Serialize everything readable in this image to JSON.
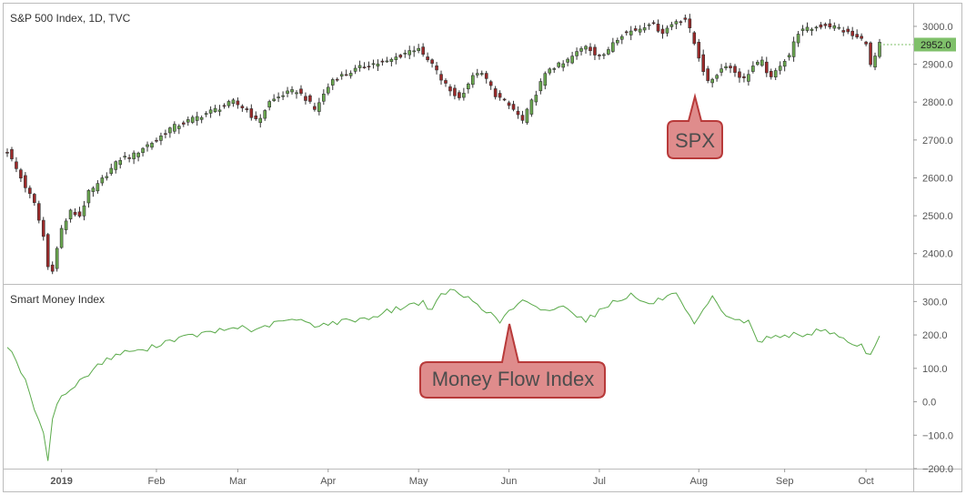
{
  "chart_data": [
    {
      "type": "candlestick",
      "title": "S&P 500 Index, 1D, TVC",
      "ylim": [
        2320,
        3060
      ],
      "y_ticks": [
        "3000.0",
        "2900.0",
        "2800.0",
        "2700.0",
        "2600.0",
        "2500.0",
        "2400.0"
      ],
      "y_tick_values": [
        3000,
        2900,
        2800,
        2700,
        2600,
        2500,
        2400
      ],
      "last_price": "2952.0",
      "last_price_value": 2952,
      "up_color": "#6aa84f",
      "down_color": "#9c2a2a",
      "close_anchors": [
        [
          0,
          2670
        ],
        [
          3,
          2600
        ],
        [
          6,
          2531
        ],
        [
          8,
          2445
        ],
        [
          9,
          2365
        ],
        [
          10,
          2360
        ],
        [
          12,
          2465
        ],
        [
          14,
          2510
        ],
        [
          16,
          2500
        ],
        [
          18,
          2560
        ],
        [
          20,
          2580
        ],
        [
          22,
          2610
        ],
        [
          25,
          2650
        ],
        [
          28,
          2660
        ],
        [
          30,
          2680
        ],
        [
          33,
          2700
        ],
        [
          36,
          2730
        ],
        [
          40,
          2750
        ],
        [
          44,
          2770
        ],
        [
          48,
          2790
        ],
        [
          50,
          2800
        ],
        [
          53,
          2780
        ],
        [
          55,
          2750
        ],
        [
          56,
          2760
        ],
        [
          58,
          2800
        ],
        [
          61,
          2820
        ],
        [
          64,
          2830
        ],
        [
          66,
          2810
        ],
        [
          68,
          2780
        ],
        [
          70,
          2820
        ],
        [
          72,
          2860
        ],
        [
          76,
          2880
        ],
        [
          80,
          2900
        ],
        [
          84,
          2905
        ],
        [
          88,
          2930
        ],
        [
          91,
          2945
        ],
        [
          92,
          2920
        ],
        [
          94,
          2900
        ],
        [
          96,
          2860
        ],
        [
          98,
          2830
        ],
        [
          100,
          2810
        ],
        [
          102,
          2850
        ],
        [
          104,
          2880
        ],
        [
          106,
          2860
        ],
        [
          108,
          2820
        ],
        [
          110,
          2800
        ],
        [
          112,
          2780
        ],
        [
          114,
          2750
        ],
        [
          116,
          2800
        ],
        [
          118,
          2850
        ],
        [
          120,
          2890
        ],
        [
          123,
          2900
        ],
        [
          126,
          2930
        ],
        [
          128,
          2950
        ],
        [
          130,
          2930
        ],
        [
          132,
          2920
        ],
        [
          134,
          2960
        ],
        [
          136,
          2980
        ],
        [
          140,
          2995
        ],
        [
          142,
          3010
        ],
        [
          145,
          2985
        ],
        [
          148,
          3015
        ],
        [
          150,
          3020
        ],
        [
          151,
          2990
        ],
        [
          153,
          2920
        ],
        [
          155,
          2850
        ],
        [
          157,
          2875
        ],
        [
          159,
          2900
        ],
        [
          161,
          2880
        ],
        [
          163,
          2860
        ],
        [
          165,
          2895
        ],
        [
          167,
          2905
        ],
        [
          169,
          2860
        ],
        [
          171,
          2900
        ],
        [
          173,
          2925
        ],
        [
          175,
          2985
        ],
        [
          178,
          2995
        ],
        [
          181,
          3005
        ],
        [
          184,
          2995
        ],
        [
          187,
          2975
        ],
        [
          190,
          2960
        ],
        [
          191,
          2895
        ],
        [
          192,
          2920
        ],
        [
          193,
          2952
        ]
      ],
      "series_count": 194
    },
    {
      "type": "line",
      "title": "Smart Money Index",
      "ylim": [
        -200,
        350
      ],
      "y_ticks": [
        "300.0",
        "200.0",
        "100.0",
        "0.0",
        "−100.0",
        "−200.0"
      ],
      "y_tick_values": [
        300,
        200,
        100,
        0,
        -100,
        -200
      ],
      "line_color": "#5aaa4a",
      "anchors": [
        [
          0,
          170
        ],
        [
          2,
          125
        ],
        [
          4,
          60
        ],
        [
          6,
          -20
        ],
        [
          8,
          -100
        ],
        [
          9,
          -170
        ],
        [
          10,
          -50
        ],
        [
          11,
          0
        ],
        [
          13,
          25
        ],
        [
          16,
          60
        ],
        [
          20,
          110
        ],
        [
          24,
          140
        ],
        [
          28,
          155
        ],
        [
          30,
          150
        ],
        [
          33,
          170
        ],
        [
          36,
          185
        ],
        [
          42,
          200
        ],
        [
          48,
          215
        ],
        [
          52,
          225
        ],
        [
          55,
          210
        ],
        [
          58,
          230
        ],
        [
          62,
          245
        ],
        [
          66,
          240
        ],
        [
          68,
          230
        ],
        [
          72,
          235
        ],
        [
          76,
          245
        ],
        [
          80,
          250
        ],
        [
          84,
          270
        ],
        [
          88,
          285
        ],
        [
          92,
          300
        ],
        [
          94,
          270
        ],
        [
          96,
          320
        ],
        [
          98,
          335
        ],
        [
          100,
          320
        ],
        [
          102,
          310
        ],
        [
          104,
          295
        ],
        [
          107,
          260
        ],
        [
          109,
          240
        ],
        [
          111,
          270
        ],
        [
          114,
          300
        ],
        [
          117,
          280
        ],
        [
          120,
          275
        ],
        [
          124,
          285
        ],
        [
          126,
          260
        ],
        [
          128,
          245
        ],
        [
          131,
          270
        ],
        [
          134,
          300
        ],
        [
          138,
          320
        ],
        [
          142,
          290
        ],
        [
          145,
          310
        ],
        [
          148,
          320
        ],
        [
          150,
          270
        ],
        [
          152,
          230
        ],
        [
          154,
          270
        ],
        [
          156,
          310
        ],
        [
          159,
          260
        ],
        [
          162,
          240
        ],
        [
          164,
          240
        ],
        [
          166,
          180
        ],
        [
          168,
          190
        ],
        [
          171,
          200
        ],
        [
          174,
          200
        ],
        [
          176,
          190
        ],
        [
          179,
          215
        ],
        [
          182,
          210
        ],
        [
          184,
          200
        ],
        [
          186,
          175
        ],
        [
          189,
          170
        ],
        [
          190,
          140
        ],
        [
          191,
          135
        ],
        [
          193,
          190
        ]
      ],
      "series_count": 194
    }
  ],
  "x_axis": {
    "labels": [
      "2019",
      "Feb",
      "Mar",
      "Apr",
      "May",
      "Jun",
      "Jul",
      "Aug",
      "Sep",
      "Oct"
    ],
    "label_index": [
      12,
      33,
      51,
      71,
      91,
      111,
      131,
      153,
      172,
      190
    ]
  },
  "annotations": {
    "spx_label": "SPX",
    "mfi_label": "Money Flow Index",
    "callout_fill": "#df8c8c",
    "callout_stroke": "#b83a3a"
  }
}
